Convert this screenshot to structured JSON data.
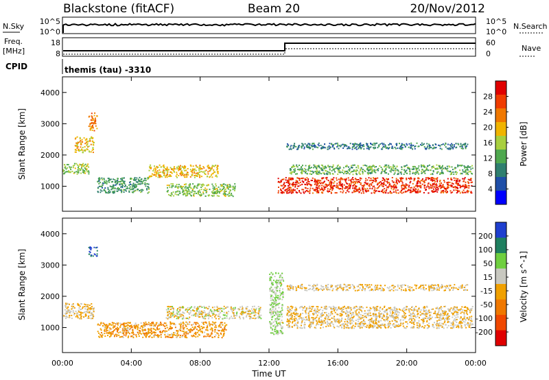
{
  "header": {
    "station": "Blackstone (fitACF)",
    "beam": "Beam 20",
    "date": "20/Nov/2012"
  },
  "noise_panel": {
    "left_label": "N.Sky",
    "right_label": "N.Search",
    "left_ticks": [
      "10^5",
      "10^0"
    ],
    "right_ticks": [
      "10^5",
      "10^0"
    ]
  },
  "freq_panel": {
    "left_label_line1": "Freq.",
    "left_label_line2": "[MHz]",
    "right_label": "Nave",
    "left_ticks": [
      "18",
      "8"
    ],
    "right_ticks": [
      "60",
      "0"
    ]
  },
  "cpid_panel": {
    "label": "CPID",
    "text": "themis (tau) -3310"
  },
  "colors": {
    "power_scale": [
      "#0000ff",
      "#1f4fa8",
      "#2f7f6f",
      "#4fa84f",
      "#a8cf3f",
      "#f0b400",
      "#f07800",
      "#f03c00",
      "#e00000"
    ],
    "velocity_scale": [
      "#1f3fcf",
      "#1f7f5f",
      "#6fcf3f",
      "#c8c8c0",
      "#f0a000",
      "#f07800",
      "#f04800",
      "#e00000"
    ]
  },
  "chart_data": [
    {
      "type": "heatmap",
      "title": "",
      "ylabel": "Slant Range [km]",
      "xlabel": "",
      "ylim": [
        200,
        4500
      ],
      "yticks": [
        "4000",
        "3000",
        "2000",
        "1000"
      ],
      "xticks": [
        "00:00",
        "04:00",
        "08:00",
        "12:00",
        "16:00",
        "20:00",
        "00:00"
      ],
      "colorbar": {
        "label": "Power [dB]",
        "ticks": [
          "28",
          "24",
          "20",
          "16",
          "12",
          "8",
          "4"
        ],
        "range": [
          0,
          30
        ]
      },
      "scatter_regions": [
        {
          "t0": 0.0,
          "t1": 1.5,
          "r0": 1400,
          "r1": 1750,
          "level": 14
        },
        {
          "t0": 0.7,
          "t1": 1.8,
          "r0": 2100,
          "r1": 2600,
          "level": 18
        },
        {
          "t0": 1.5,
          "t1": 2.0,
          "r0": 2800,
          "r1": 3400,
          "level": 22
        },
        {
          "t0": 2.0,
          "t1": 5.0,
          "r0": 800,
          "r1": 1300,
          "level": 10
        },
        {
          "t0": 5.0,
          "t1": 9.0,
          "r0": 1300,
          "r1": 1700,
          "level": 18
        },
        {
          "t0": 6.0,
          "t1": 10.0,
          "r0": 700,
          "r1": 1100,
          "level": 14
        },
        {
          "t0": 12.5,
          "t1": 23.8,
          "r0": 800,
          "r1": 1300,
          "level": 26
        },
        {
          "t0": 13.0,
          "t1": 23.8,
          "r0": 1400,
          "r1": 1700,
          "level": 12
        },
        {
          "t0": 13.0,
          "t1": 23.5,
          "r0": 2200,
          "r1": 2400,
          "level": 8
        }
      ]
    },
    {
      "type": "heatmap",
      "title": "",
      "ylabel": "Slant Range [km]",
      "xlabel": "Time UT",
      "ylim": [
        200,
        4500
      ],
      "yticks": [
        "4000",
        "3000",
        "2000",
        "1000"
      ],
      "xticks": [
        "00:00",
        "04:00",
        "08:00",
        "12:00",
        "16:00",
        "20:00",
        "00:00"
      ],
      "colorbar": {
        "label": "Velocity [m s^-1]",
        "ticks": [
          "200",
          "100",
          "50",
          "15",
          "-15",
          "-50",
          "-100",
          "-200"
        ],
        "range": [
          -250,
          250
        ]
      },
      "scatter_regions": [
        {
          "t0": 0.0,
          "t1": 1.8,
          "r0": 1300,
          "r1": 1800,
          "level": 0
        },
        {
          "t0": 1.5,
          "t1": 2.0,
          "r0": 3300,
          "r1": 3600,
          "level": 200
        },
        {
          "t0": 2.0,
          "t1": 9.5,
          "r0": 700,
          "r1": 1200,
          "level": -50
        },
        {
          "t0": 6.0,
          "t1": 11.5,
          "r0": 1300,
          "r1": 1700,
          "level": 20
        },
        {
          "t0": 12.0,
          "t1": 12.8,
          "r0": 800,
          "r1": 2800,
          "level": 60
        },
        {
          "t0": 13.0,
          "t1": 23.8,
          "r0": 1000,
          "r1": 1700,
          "level": 0
        },
        {
          "t0": 13.0,
          "t1": 23.5,
          "r0": 2200,
          "r1": 2400,
          "level": 0
        }
      ]
    }
  ]
}
